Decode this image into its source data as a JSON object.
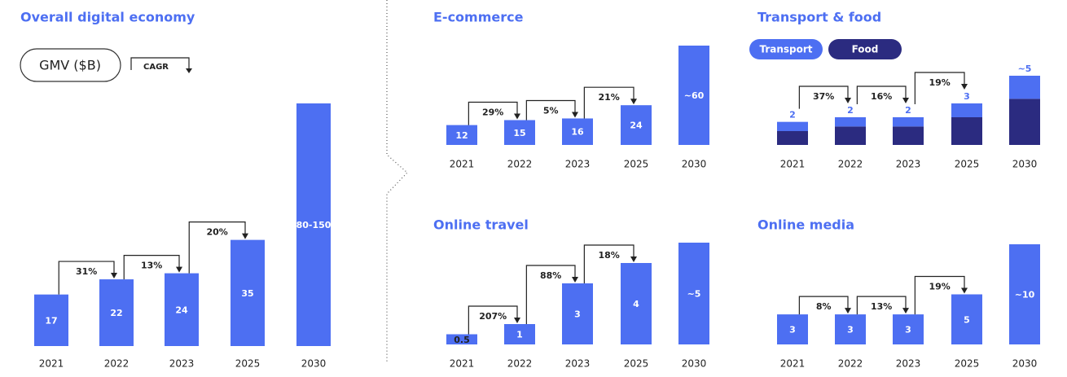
{
  "chart_data": [
    {
      "type": "bar",
      "title": "Overall digital economy",
      "unit_label": "GMV ($B)",
      "cagr_label": "CAGR",
      "categories": [
        "2021",
        "2022",
        "2023",
        "2025",
        "2030"
      ],
      "values": [
        17,
        22,
        24,
        35,
        80
      ],
      "value_labels": [
        "17",
        "22",
        "24",
        "35",
        "80-150"
      ],
      "color": "#4d6ff2",
      "cagr": [
        31,
        13,
        20
      ],
      "cagr_labels": [
        "31%",
        "13%",
        "20%"
      ]
    },
    {
      "type": "bar",
      "title": "E-commerce",
      "categories": [
        "2021",
        "2022",
        "2023",
        "2025",
        "2030"
      ],
      "values": [
        12,
        15,
        16,
        24,
        60
      ],
      "value_labels": [
        "12",
        "15",
        "16",
        "24",
        "~60"
      ],
      "color": "#4d6ff2",
      "cagr": [
        29,
        5,
        21
      ],
      "cagr_labels": [
        "29%",
        "5%",
        "21%"
      ]
    },
    {
      "type": "bar",
      "stacked": true,
      "title": "Transport & food",
      "categories": [
        "2021",
        "2022",
        "2023",
        "2025",
        "2030"
      ],
      "series": [
        {
          "name": "Transport",
          "color": "#4d6ff2",
          "values": [
            2,
            2,
            2,
            3,
            5
          ],
          "value_labels": [
            "2",
            "2",
            "2",
            "3",
            "~5"
          ]
        },
        {
          "name": "Food",
          "color": "#2b2b80",
          "values": [
            3,
            4,
            4,
            6,
            10
          ]
        }
      ],
      "cagr": [
        37,
        16,
        19
      ],
      "cagr_labels": [
        "37%",
        "16%",
        "19%"
      ]
    },
    {
      "type": "bar",
      "title": "Online travel",
      "categories": [
        "2021",
        "2022",
        "2023",
        "2025",
        "2030"
      ],
      "values": [
        0.5,
        1,
        3,
        4,
        5
      ],
      "value_labels": [
        "0.5",
        "1",
        "3",
        "4",
        "~5"
      ],
      "color": "#4d6ff2",
      "cagr": [
        207,
        88,
        18
      ],
      "cagr_labels": [
        "207%",
        "88%",
        "18%"
      ]
    },
    {
      "type": "bar",
      "title": "Online media",
      "categories": [
        "2021",
        "2022",
        "2023",
        "2025",
        "2030"
      ],
      "values": [
        3,
        3,
        3,
        5,
        10
      ],
      "value_labels": [
        "3",
        "3",
        "3",
        "5",
        "~10"
      ],
      "color": "#4d6ff2",
      "cagr": [
        8,
        13,
        19
      ],
      "cagr_labels": [
        "8%",
        "13%",
        "19%"
      ]
    }
  ]
}
